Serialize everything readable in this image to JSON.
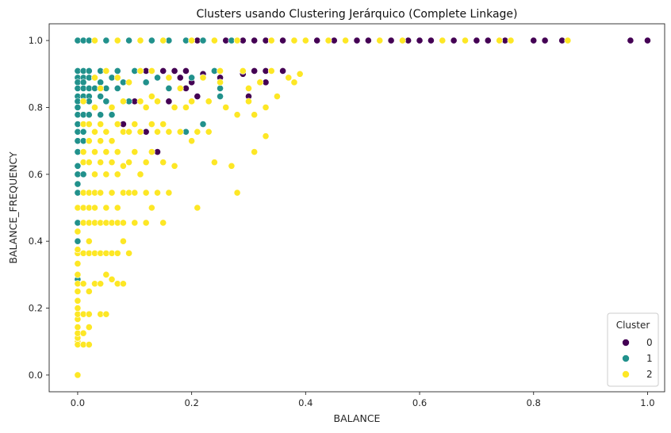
{
  "chart_data": {
    "type": "scatter",
    "title": "Clusters usando Clustering Jerárquico (Complete Linkage)",
    "xlabel": "BALANCE",
    "ylabel": "BALANCE_FREQUENCY",
    "xlim": [
      -0.05,
      1.03
    ],
    "ylim": [
      -0.05,
      1.05
    ],
    "xticks": [
      0.0,
      0.2,
      0.4,
      0.6,
      0.8,
      1.0
    ],
    "yticks": [
      0.0,
      0.2,
      0.4,
      0.6,
      0.8,
      1.0
    ],
    "xtick_labels": [
      "0.0",
      "0.2",
      "0.4",
      "0.6",
      "0.8",
      "1.0"
    ],
    "ytick_labels": [
      "0.0",
      "0.2",
      "0.4",
      "0.6",
      "0.8",
      "1.0"
    ],
    "grid": false,
    "legend": {
      "title": "Cluster",
      "placement": "lower-right"
    },
    "series": [
      {
        "name": "0",
        "color": "#440154",
        "points": [
          [
            0.19,
            1.0
          ],
          [
            0.21,
            1.0
          ],
          [
            0.26,
            1.0
          ],
          [
            0.29,
            1.0
          ],
          [
            0.31,
            1.0
          ],
          [
            0.33,
            1.0
          ],
          [
            0.36,
            1.0
          ],
          [
            0.42,
            1.0
          ],
          [
            0.45,
            1.0
          ],
          [
            0.49,
            1.0
          ],
          [
            0.51,
            1.0
          ],
          [
            0.55,
            1.0
          ],
          [
            0.58,
            1.0
          ],
          [
            0.6,
            1.0
          ],
          [
            0.62,
            1.0
          ],
          [
            0.66,
            1.0
          ],
          [
            0.7,
            1.0
          ],
          [
            0.72,
            1.0
          ],
          [
            0.75,
            1.0
          ],
          [
            0.8,
            1.0
          ],
          [
            0.82,
            1.0
          ],
          [
            0.85,
            1.0
          ],
          [
            0.97,
            1.0
          ],
          [
            1.0,
            1.0
          ],
          [
            0.12,
            0.909
          ],
          [
            0.15,
            0.909
          ],
          [
            0.17,
            0.909
          ],
          [
            0.19,
            0.909
          ],
          [
            0.22,
            0.9
          ],
          [
            0.24,
            0.909
          ],
          [
            0.29,
            0.9
          ],
          [
            0.31,
            0.909
          ],
          [
            0.33,
            0.909
          ],
          [
            0.36,
            0.909
          ],
          [
            0.18,
            0.889
          ],
          [
            0.2,
            0.875
          ],
          [
            0.25,
            0.889
          ],
          [
            0.3,
            0.833
          ],
          [
            0.33,
            0.875
          ],
          [
            0.16,
            0.818
          ],
          [
            0.19,
            0.857
          ],
          [
            0.21,
            0.833
          ],
          [
            0.12,
            0.727
          ],
          [
            0.19,
            0.727
          ],
          [
            0.14,
            0.667
          ],
          [
            0.15,
            0.636
          ],
          [
            0.08,
            0.75
          ],
          [
            0.1,
            0.818
          ]
        ]
      },
      {
        "name": "1",
        "color": "#21918c",
        "points": [
          [
            0.0,
            1.0
          ],
          [
            0.01,
            1.0
          ],
          [
            0.02,
            1.0
          ],
          [
            0.05,
            1.0
          ],
          [
            0.09,
            1.0
          ],
          [
            0.13,
            1.0
          ],
          [
            0.16,
            1.0
          ],
          [
            0.19,
            1.0
          ],
          [
            0.22,
            1.0
          ],
          [
            0.27,
            1.0
          ],
          [
            0.0,
            0.909
          ],
          [
            0.0,
            0.889
          ],
          [
            0.0,
            0.875
          ],
          [
            0.0,
            0.857
          ],
          [
            0.0,
            0.833
          ],
          [
            0.0,
            0.818
          ],
          [
            0.0,
            0.8
          ],
          [
            0.0,
            0.778
          ],
          [
            0.0,
            0.75
          ],
          [
            0.0,
            0.727
          ],
          [
            0.0,
            0.7
          ],
          [
            0.0,
            0.667
          ],
          [
            0.0,
            0.625
          ],
          [
            0.0,
            0.6
          ],
          [
            0.0,
            0.571
          ],
          [
            0.0,
            0.545
          ],
          [
            0.0,
            0.455
          ],
          [
            0.0,
            0.4
          ],
          [
            0.0,
            0.286
          ],
          [
            0.01,
            0.909
          ],
          [
            0.01,
            0.889
          ],
          [
            0.01,
            0.875
          ],
          [
            0.01,
            0.857
          ],
          [
            0.01,
            0.833
          ],
          [
            0.01,
            0.818
          ],
          [
            0.01,
            0.778
          ],
          [
            0.01,
            0.727
          ],
          [
            0.01,
            0.7
          ],
          [
            0.01,
            0.6
          ],
          [
            0.02,
            0.909
          ],
          [
            0.02,
            0.889
          ],
          [
            0.02,
            0.857
          ],
          [
            0.02,
            0.833
          ],
          [
            0.02,
            0.818
          ],
          [
            0.02,
            0.778
          ],
          [
            0.02,
            0.75
          ],
          [
            0.03,
            0.889
          ],
          [
            0.03,
            0.857
          ],
          [
            0.04,
            0.909
          ],
          [
            0.04,
            0.875
          ],
          [
            0.04,
            0.833
          ],
          [
            0.04,
            0.778
          ],
          [
            0.05,
            0.857
          ],
          [
            0.05,
            0.818
          ],
          [
            0.06,
            0.889
          ],
          [
            0.06,
            0.778
          ],
          [
            0.07,
            0.909
          ],
          [
            0.07,
            0.857
          ],
          [
            0.08,
            0.875
          ],
          [
            0.09,
            0.818
          ],
          [
            0.1,
            0.909
          ],
          [
            0.12,
            0.875
          ],
          [
            0.14,
            0.889
          ],
          [
            0.16,
            0.857
          ],
          [
            0.19,
            0.727
          ],
          [
            0.2,
            0.889
          ],
          [
            0.25,
            0.857
          ],
          [
            0.25,
            0.833
          ],
          [
            0.22,
            0.75
          ],
          [
            0.24,
            0.909
          ]
        ]
      },
      {
        "name": "2",
        "color": "#fde725",
        "points": [
          [
            0.03,
            1.0
          ],
          [
            0.07,
            1.0
          ],
          [
            0.11,
            1.0
          ],
          [
            0.15,
            1.0
          ],
          [
            0.2,
            1.0
          ],
          [
            0.24,
            1.0
          ],
          [
            0.28,
            1.0
          ],
          [
            0.34,
            1.0
          ],
          [
            0.38,
            1.0
          ],
          [
            0.4,
            1.0
          ],
          [
            0.44,
            1.0
          ],
          [
            0.47,
            1.0
          ],
          [
            0.53,
            1.0
          ],
          [
            0.57,
            1.0
          ],
          [
            0.64,
            1.0
          ],
          [
            0.68,
            1.0
          ],
          [
            0.74,
            1.0
          ],
          [
            0.76,
            1.0
          ],
          [
            0.86,
            1.0
          ],
          [
            0.0,
            0.1
          ],
          [
            0.0,
            0.111
          ],
          [
            0.0,
            0.125
          ],
          [
            0.0,
            0.143
          ],
          [
            0.0,
            0.167
          ],
          [
            0.0,
            0.182
          ],
          [
            0.0,
            0.2
          ],
          [
            0.0,
            0.222
          ],
          [
            0.0,
            0.25
          ],
          [
            0.0,
            0.273
          ],
          [
            0.0,
            0.3
          ],
          [
            0.0,
            0.333
          ],
          [
            0.0,
            0.364
          ],
          [
            0.0,
            0.375
          ],
          [
            0.0,
            0.429
          ],
          [
            0.0,
            0.5
          ],
          [
            0.0,
            0.0
          ],
          [
            0.0,
            0.091
          ],
          [
            0.01,
            0.091
          ],
          [
            0.01,
            0.125
          ],
          [
            0.01,
            0.182
          ],
          [
            0.01,
            0.273
          ],
          [
            0.01,
            0.364
          ],
          [
            0.01,
            0.455
          ],
          [
            0.01,
            0.5
          ],
          [
            0.01,
            0.545
          ],
          [
            0.01,
            0.636
          ],
          [
            0.01,
            0.667
          ],
          [
            0.01,
            0.75
          ],
          [
            0.01,
            0.818
          ],
          [
            0.02,
            0.091
          ],
          [
            0.02,
            0.143
          ],
          [
            0.02,
            0.182
          ],
          [
            0.02,
            0.25
          ],
          [
            0.02,
            0.364
          ],
          [
            0.02,
            0.4
          ],
          [
            0.02,
            0.455
          ],
          [
            0.02,
            0.5
          ],
          [
            0.02,
            0.545
          ],
          [
            0.02,
            0.636
          ],
          [
            0.02,
            0.7
          ],
          [
            0.02,
            0.75
          ],
          [
            0.03,
            0.273
          ],
          [
            0.03,
            0.364
          ],
          [
            0.03,
            0.455
          ],
          [
            0.03,
            0.5
          ],
          [
            0.03,
            0.545
          ],
          [
            0.03,
            0.6
          ],
          [
            0.03,
            0.667
          ],
          [
            0.03,
            0.727
          ],
          [
            0.03,
            0.8
          ],
          [
            0.04,
            0.182
          ],
          [
            0.04,
            0.273
          ],
          [
            0.04,
            0.364
          ],
          [
            0.04,
            0.455
          ],
          [
            0.04,
            0.545
          ],
          [
            0.04,
            0.636
          ],
          [
            0.04,
            0.7
          ],
          [
            0.04,
            0.75
          ],
          [
            0.05,
            0.182
          ],
          [
            0.05,
            0.3
          ],
          [
            0.05,
            0.364
          ],
          [
            0.05,
            0.455
          ],
          [
            0.05,
            0.5
          ],
          [
            0.05,
            0.6
          ],
          [
            0.05,
            0.667
          ],
          [
            0.05,
            0.727
          ],
          [
            0.06,
            0.286
          ],
          [
            0.06,
            0.364
          ],
          [
            0.06,
            0.455
          ],
          [
            0.06,
            0.545
          ],
          [
            0.06,
            0.636
          ],
          [
            0.06,
            0.7
          ],
          [
            0.06,
            0.8
          ],
          [
            0.07,
            0.273
          ],
          [
            0.07,
            0.364
          ],
          [
            0.07,
            0.455
          ],
          [
            0.07,
            0.5
          ],
          [
            0.07,
            0.6
          ],
          [
            0.07,
            0.667
          ],
          [
            0.07,
            0.75
          ],
          [
            0.08,
            0.273
          ],
          [
            0.08,
            0.4
          ],
          [
            0.08,
            0.455
          ],
          [
            0.08,
            0.545
          ],
          [
            0.08,
            0.625
          ],
          [
            0.08,
            0.727
          ],
          [
            0.08,
            0.818
          ],
          [
            0.09,
            0.364
          ],
          [
            0.09,
            0.545
          ],
          [
            0.09,
            0.636
          ],
          [
            0.09,
            0.727
          ],
          [
            0.1,
            0.455
          ],
          [
            0.1,
            0.545
          ],
          [
            0.1,
            0.667
          ],
          [
            0.1,
            0.75
          ],
          [
            0.11,
            0.6
          ],
          [
            0.11,
            0.727
          ],
          [
            0.11,
            0.818
          ],
          [
            0.12,
            0.455
          ],
          [
            0.12,
            0.545
          ],
          [
            0.12,
            0.636
          ],
          [
            0.12,
            0.8
          ],
          [
            0.13,
            0.5
          ],
          [
            0.13,
            0.667
          ],
          [
            0.13,
            0.75
          ],
          [
            0.13,
            0.833
          ],
          [
            0.14,
            0.545
          ],
          [
            0.14,
            0.727
          ],
          [
            0.14,
            0.818
          ],
          [
            0.15,
            0.455
          ],
          [
            0.15,
            0.636
          ],
          [
            0.15,
            0.75
          ],
          [
            0.16,
            0.545
          ],
          [
            0.16,
            0.727
          ],
          [
            0.16,
            0.889
          ],
          [
            0.17,
            0.625
          ],
          [
            0.17,
            0.8
          ],
          [
            0.18,
            0.727
          ],
          [
            0.18,
            0.857
          ],
          [
            0.19,
            0.8
          ],
          [
            0.2,
            0.7
          ],
          [
            0.2,
            0.818
          ],
          [
            0.21,
            0.5
          ],
          [
            0.21,
            0.727
          ],
          [
            0.22,
            0.889
          ],
          [
            0.23,
            0.727
          ],
          [
            0.23,
            0.818
          ],
          [
            0.24,
            0.636
          ],
          [
            0.25,
            0.875
          ],
          [
            0.25,
            0.909
          ],
          [
            0.26,
            0.8
          ],
          [
            0.27,
            0.625
          ],
          [
            0.28,
            0.545
          ],
          [
            0.28,
            0.778
          ],
          [
            0.29,
            0.909
          ],
          [
            0.3,
            0.818
          ],
          [
            0.3,
            0.857
          ],
          [
            0.31,
            0.667
          ],
          [
            0.31,
            0.778
          ],
          [
            0.32,
            0.875
          ],
          [
            0.33,
            0.714
          ],
          [
            0.33,
            0.8
          ],
          [
            0.34,
            0.909
          ],
          [
            0.35,
            0.833
          ],
          [
            0.37,
            0.889
          ],
          [
            0.38,
            0.875
          ],
          [
            0.39,
            0.9
          ],
          [
            0.11,
            0.909
          ],
          [
            0.13,
            0.909
          ],
          [
            0.05,
            0.909
          ],
          [
            0.07,
            0.889
          ],
          [
            0.09,
            0.875
          ],
          [
            0.04,
            0.857
          ],
          [
            0.03,
            0.889
          ]
        ]
      }
    ]
  }
}
